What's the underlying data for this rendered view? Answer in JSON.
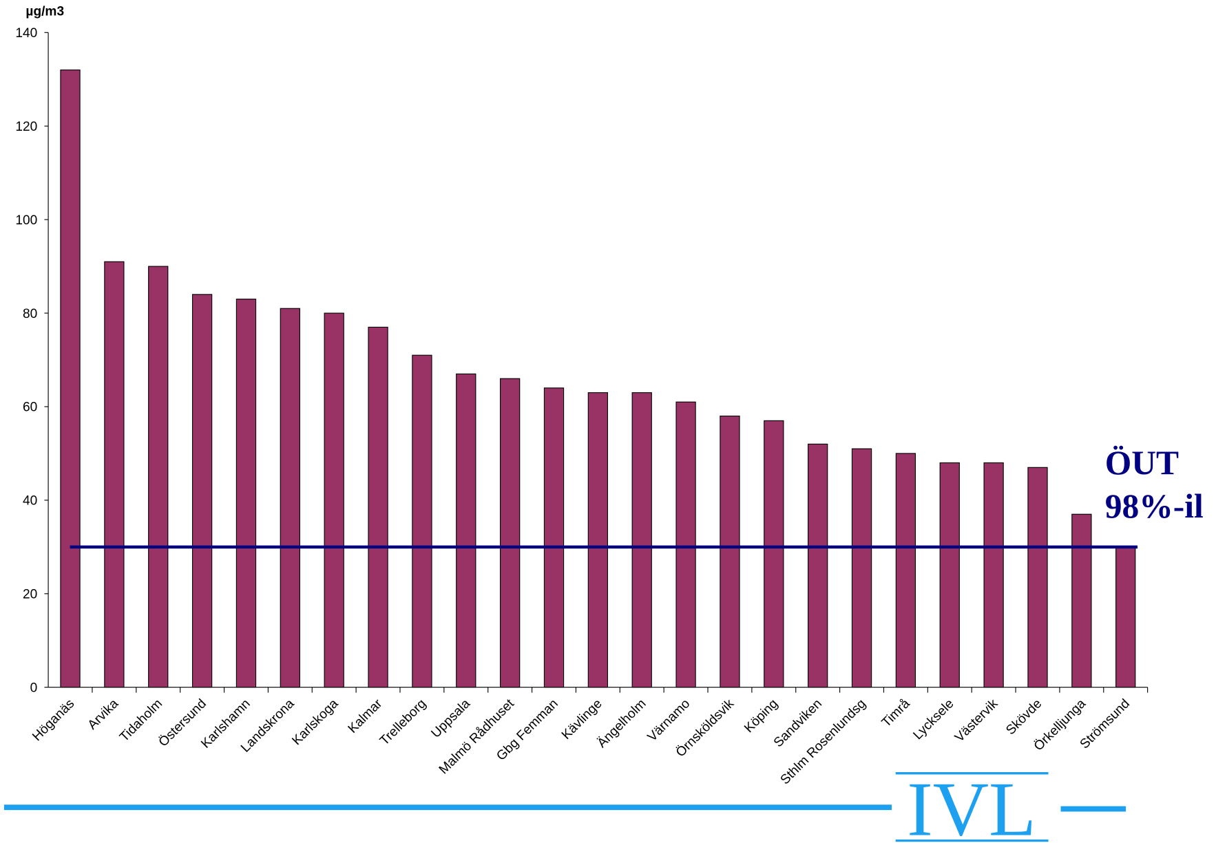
{
  "chart_data": {
    "type": "bar",
    "y_axis_label": "µg/m3",
    "categories": [
      "Höganäs",
      "Arvika",
      "Tidaholm",
      "Östersund",
      "Karlshamn",
      "Landskrona",
      "Karlskoga",
      "Kalmar",
      "Trelleborg",
      "Uppsala",
      "Malmö Rådhuset",
      "Gbg Femman",
      "Kävlinge",
      "Ängelholm",
      "Värnamo",
      "Örnsköldsvik",
      "Köping",
      "Sandviken",
      "Sthlm Rosenlundsg",
      "Timrå",
      "Lycksele",
      "Västervik",
      "Skövde",
      "Örkelljunga",
      "Strömsund"
    ],
    "values": [
      132,
      91,
      90,
      84,
      83,
      81,
      80,
      77,
      71,
      67,
      66,
      64,
      63,
      63,
      61,
      58,
      57,
      52,
      51,
      50,
      48,
      48,
      47,
      37,
      30
    ],
    "color": "#993366",
    "ylim": [
      0,
      140
    ],
    "yticks": [
      0,
      20,
      40,
      60,
      80,
      100,
      120,
      140
    ],
    "reference_line": {
      "value": 30,
      "color": "#000080"
    },
    "annotation": [
      "ÖUT",
      "98%-il"
    ],
    "logo": "IVL"
  }
}
